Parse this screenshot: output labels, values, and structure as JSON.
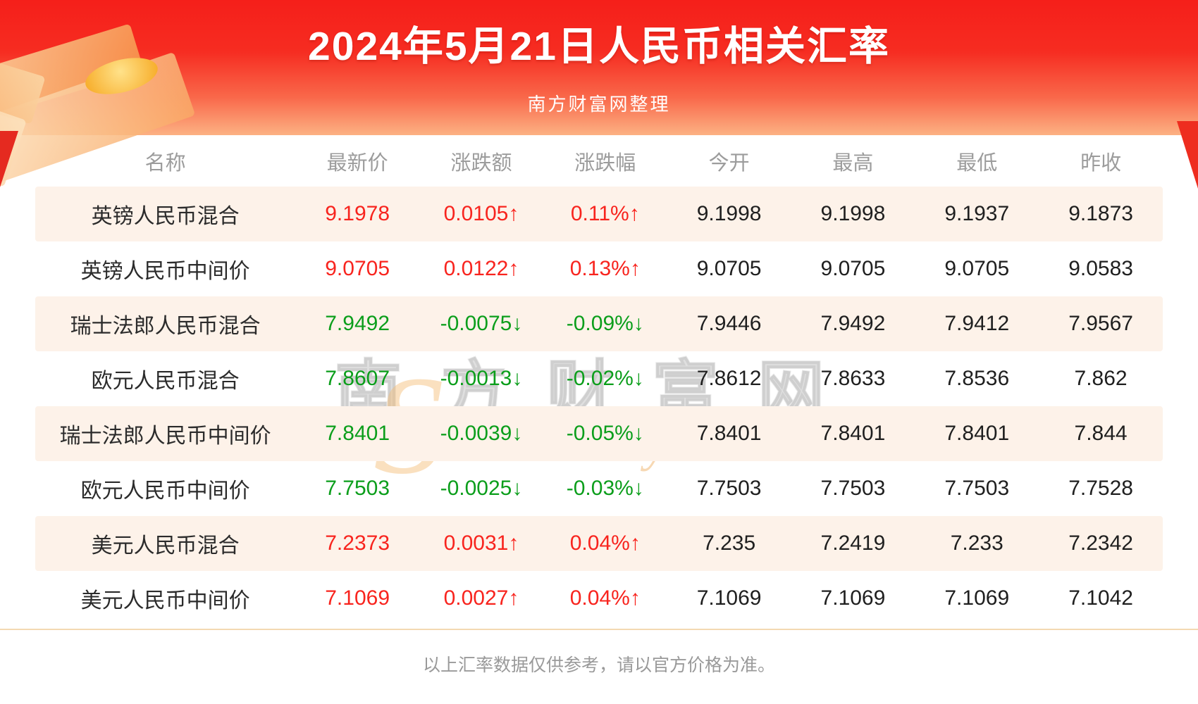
{
  "banner": {
    "title": "2024年5月21日人民币相关汇率",
    "subtitle": "南方财富网整理"
  },
  "watermark": {
    "swoosh": "S",
    "cn": "南方财富网",
    "en": "outhmoney.com"
  },
  "footer": {
    "note": "以上汇率数据仅供参考，请以官方价格为准。"
  },
  "colors": {
    "up": "#f8241e",
    "down": "#0b9e1b",
    "banner_red": "#f5201b",
    "row_alt_bg": "#fdf2e9"
  },
  "chart_data": {
    "type": "table",
    "title": "2024年5月21日人民币相关汇率",
    "source_note": "南方财富网整理",
    "columns": [
      "名称",
      "最新价",
      "涨跌额",
      "涨跌幅",
      "今开",
      "最高",
      "最低",
      "昨收"
    ],
    "rows": [
      {
        "name": "英镑人民币混合",
        "latest": "9.1978",
        "change": "0.0105↑",
        "change_pct": "0.11%↑",
        "open": "9.1998",
        "high": "9.1998",
        "low": "9.1937",
        "prev_close": "9.1873",
        "direction": "up"
      },
      {
        "name": "英镑人民币中间价",
        "latest": "9.0705",
        "change": "0.0122↑",
        "change_pct": "0.13%↑",
        "open": "9.0705",
        "high": "9.0705",
        "low": "9.0705",
        "prev_close": "9.0583",
        "direction": "up"
      },
      {
        "name": "瑞士法郎人民币混合",
        "latest": "7.9492",
        "change": "-0.0075↓",
        "change_pct": "-0.09%↓",
        "open": "7.9446",
        "high": "7.9492",
        "low": "7.9412",
        "prev_close": "7.9567",
        "direction": "down"
      },
      {
        "name": "欧元人民币混合",
        "latest": "7.8607",
        "change": "-0.0013↓",
        "change_pct": "-0.02%↓",
        "open": "7.8612",
        "high": "7.8633",
        "low": "7.8536",
        "prev_close": "7.862",
        "direction": "down"
      },
      {
        "name": "瑞士法郎人民币中间价",
        "latest": "7.8401",
        "change": "-0.0039↓",
        "change_pct": "-0.05%↓",
        "open": "7.8401",
        "high": "7.8401",
        "low": "7.8401",
        "prev_close": "7.844",
        "direction": "down"
      },
      {
        "name": "欧元人民币中间价",
        "latest": "7.7503",
        "change": "-0.0025↓",
        "change_pct": "-0.03%↓",
        "open": "7.7503",
        "high": "7.7503",
        "low": "7.7503",
        "prev_close": "7.7528",
        "direction": "down"
      },
      {
        "name": "美元人民币混合",
        "latest": "7.2373",
        "change": "0.0031↑",
        "change_pct": "0.04%↑",
        "open": "7.235",
        "high": "7.2419",
        "low": "7.233",
        "prev_close": "7.2342",
        "direction": "up"
      },
      {
        "name": "美元人民币中间价",
        "latest": "7.1069",
        "change": "0.0027↑",
        "change_pct": "0.04%↑",
        "open": "7.1069",
        "high": "7.1069",
        "low": "7.1069",
        "prev_close": "7.1042",
        "direction": "up"
      }
    ]
  }
}
